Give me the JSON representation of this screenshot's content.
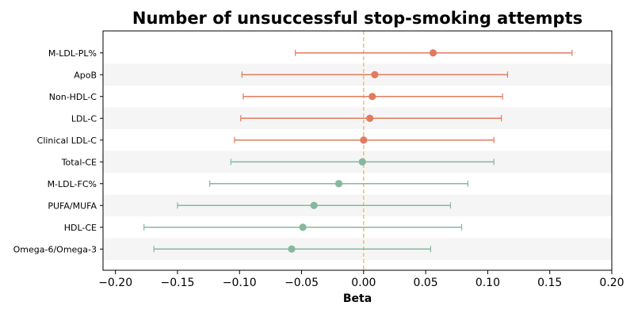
{
  "chart_data": {
    "type": "forest",
    "title": "Number of unsuccessful stop-smoking attempts",
    "xlabel": "Beta",
    "xlim": [
      -0.21,
      0.2
    ],
    "xticks": [
      -0.2,
      -0.15,
      -0.1,
      -0.05,
      0.0,
      0.05,
      0.1,
      0.15,
      0.2
    ],
    "xtick_labels": [
      "−0.20",
      "−0.15",
      "−0.10",
      "−0.05",
      "0.00",
      "0.05",
      "0.10",
      "0.15",
      "0.20"
    ],
    "reference_line": 0.0,
    "reference_color": "#f0c27a",
    "colors": {
      "positive": "#e07b5f",
      "negative": "#86b89e",
      "band": "#f5f5f5"
    },
    "rows": [
      {
        "label": "M-LDL-PL%",
        "beta": 0.056,
        "lower": -0.055,
        "upper": 0.168,
        "group": "positive"
      },
      {
        "label": "ApoB",
        "beta": 0.009,
        "lower": -0.098,
        "upper": 0.116,
        "group": "positive"
      },
      {
        "label": "Non-HDL-C",
        "beta": 0.007,
        "lower": -0.097,
        "upper": 0.112,
        "group": "positive"
      },
      {
        "label": "LDL-C",
        "beta": 0.005,
        "lower": -0.099,
        "upper": 0.111,
        "group": "positive"
      },
      {
        "label": "Clinical LDL-C",
        "beta": 0.0,
        "lower": -0.104,
        "upper": 0.105,
        "group": "positive"
      },
      {
        "label": "Total-CE",
        "beta": -0.001,
        "lower": -0.107,
        "upper": 0.105,
        "group": "negative"
      },
      {
        "label": "M-LDL-FC%",
        "beta": -0.02,
        "lower": -0.124,
        "upper": 0.084,
        "group": "negative"
      },
      {
        "label": "PUFA/MUFA",
        "beta": -0.04,
        "lower": -0.15,
        "upper": 0.07,
        "group": "negative"
      },
      {
        "label": "HDL-CE",
        "beta": -0.049,
        "lower": -0.177,
        "upper": 0.079,
        "group": "negative"
      },
      {
        "label": "Omega-6/Omega-3",
        "beta": -0.058,
        "lower": -0.169,
        "upper": 0.054,
        "group": "negative"
      }
    ]
  }
}
